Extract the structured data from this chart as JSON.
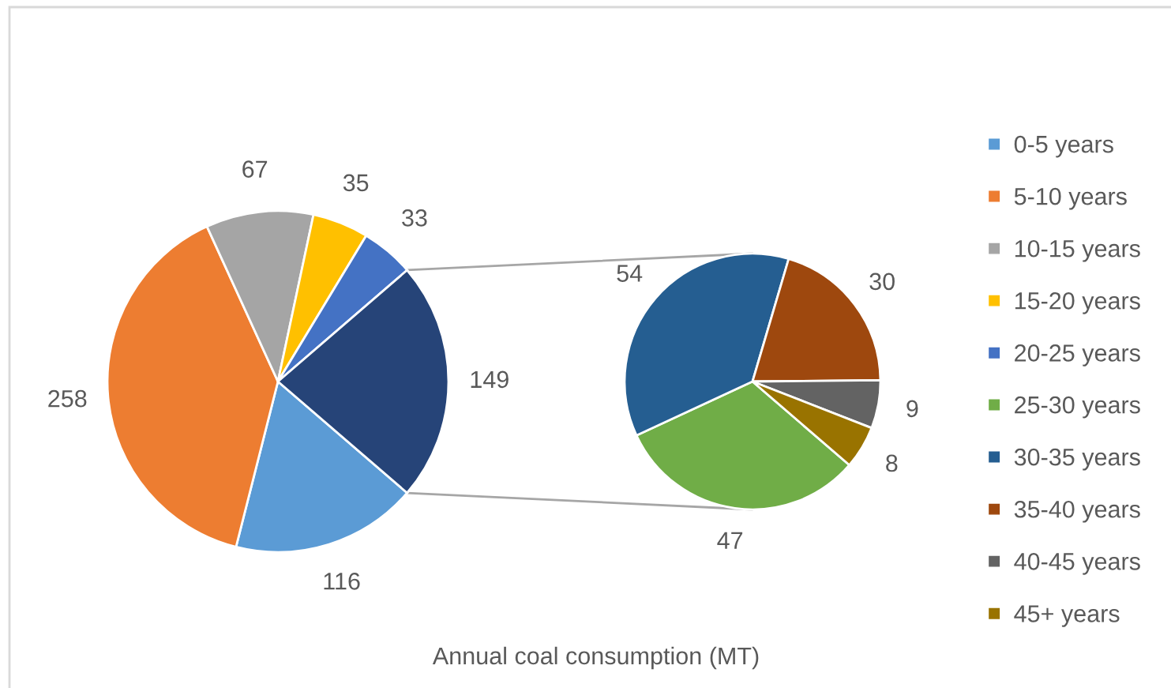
{
  "chart_data": [
    {
      "type": "pie",
      "categories": [
        "0-5 years",
        "5-10 years",
        "10-15 years",
        "15-20 years",
        "20-25 years",
        null
      ],
      "values": [
        116,
        258,
        67,
        35,
        33,
        149
      ],
      "colors": [
        "#5b9bd5",
        "#ed7d31",
        "#a5a5a5",
        "#ffc000",
        "#4472c4",
        "#264478"
      ],
      "data_labels": true,
      "legend": "right",
      "annotations": [
        "Annual coal consumption (MT)"
      ]
    },
    {
      "type": "pie",
      "categories": [
        "25-30 years",
        "30-35 years",
        "35-40 years",
        "40-45 years",
        "45+ years"
      ],
      "values": [
        47,
        54,
        30,
        9,
        8
      ],
      "colors": [
        "#70ad47",
        "#255e91",
        "#9e480e",
        "#636363",
        "#997300"
      ],
      "data_labels": true,
      "legend": "right"
    }
  ]
}
